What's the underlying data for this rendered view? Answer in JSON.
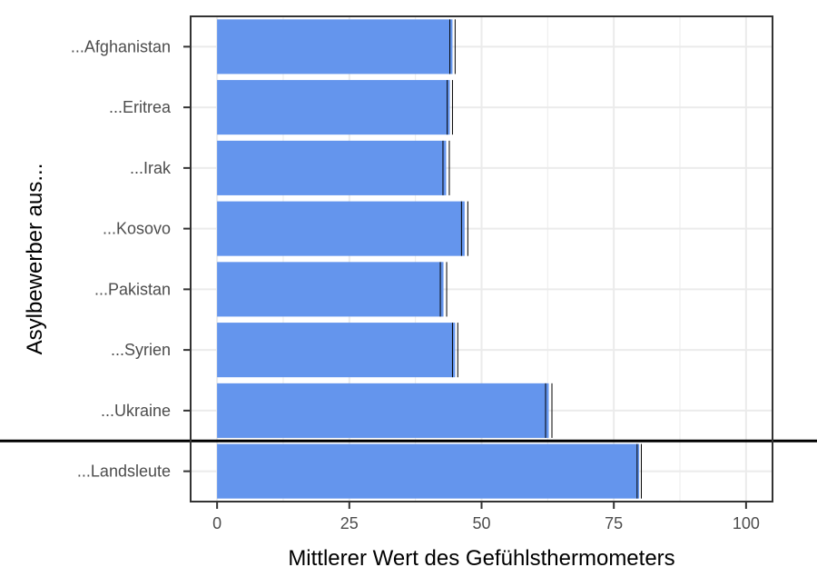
{
  "chart_data": {
    "type": "bar",
    "orientation": "horizontal",
    "categories": [
      "...Afghanistan",
      "...Eritrea",
      "...Irak",
      "...Kosovo",
      "...Pakistan",
      "...Syrien",
      "...Ukraine",
      "...Landsleute"
    ],
    "values": [
      44.5,
      44.0,
      43.3,
      46.8,
      42.8,
      45.0,
      62.7,
      79.8
    ],
    "error": [
      0.5,
      0.5,
      0.6,
      0.6,
      0.6,
      0.5,
      0.6,
      0.4
    ],
    "xlabel": "Mittlerer Wert des Gefühlsthermometers",
    "ylabel": "Asylbewerber aus...",
    "xlim": [
      -5,
      105
    ],
    "xticks": [
      0,
      25,
      50,
      75,
      100
    ],
    "grid": true,
    "reference_line_between": [
      "...Ukraine",
      "...Landsleute"
    ],
    "colors": {
      "bar": "#6495ed",
      "grid": "#ebebeb",
      "frame": "#333333",
      "reference_line": "#000000"
    }
  }
}
